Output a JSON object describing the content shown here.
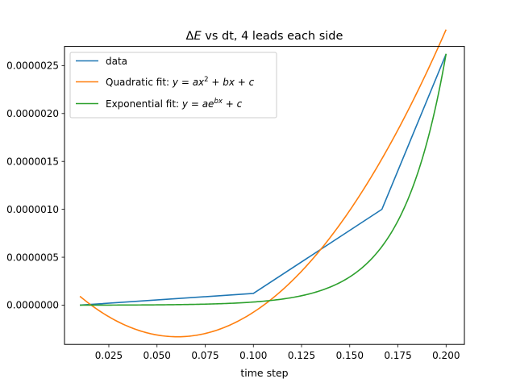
{
  "chart_data": {
    "type": "line",
    "title": "ΔE vs dt, 4 leads each side",
    "title_parts": {
      "symbol": "Δ",
      "italic_var": "E",
      "rest": " vs dt, 4 leads each side"
    },
    "xlabel": "time step",
    "ylabel": "",
    "xlim": [
      0.002,
      0.2095
    ],
    "ylim": [
      -4.1e-07,
      2.7e-06
    ],
    "x_ticks": [
      0.025,
      0.05,
      0.075,
      0.1,
      0.125,
      0.15,
      0.175,
      0.2
    ],
    "x_tick_labels": [
      "0.025",
      "0.050",
      "0.075",
      "0.100",
      "0.125",
      "0.150",
      "0.175",
      "0.200"
    ],
    "y_ticks": [
      0,
      5e-07,
      1e-06,
      1.5e-06,
      2e-06,
      2.5e-06
    ],
    "y_tick_labels": [
      "0.0000000",
      "0.0000005",
      "0.0000010",
      "0.0000015",
      "0.0000020",
      "0.0000025"
    ],
    "grid": false,
    "legend_position": "upper-left",
    "series": [
      {
        "name": "data",
        "color": "#1f77b4",
        "kind": "points",
        "x": [
          0.01,
          0.1,
          0.1667,
          0.2
        ],
        "y": [
          0,
          1.22e-07,
          1e-06,
          2.62e-06
        ]
      },
      {
        "name": "Quadratic fit",
        "color": "#ff7f0e",
        "kind": "quadratic",
        "x_range": [
          0.01,
          0.2
        ],
        "coef": {
          "a": 0.000165,
          "b": -2e-05,
          "c": 2.76e-07
        },
        "legend_parts": {
          "prefix": "Quadratic fit: ",
          "formula": "quadratic"
        }
      },
      {
        "name": "Exponential fit",
        "color": "#2ca02c",
        "kind": "exponential",
        "x_range": [
          0.01,
          0.2
        ],
        "coef": {
          "a": 4.2e-10,
          "b": 43.7,
          "c": -6e-10
        },
        "legend_parts": {
          "prefix": "Exponential fit: ",
          "formula": "exponential"
        }
      }
    ]
  }
}
